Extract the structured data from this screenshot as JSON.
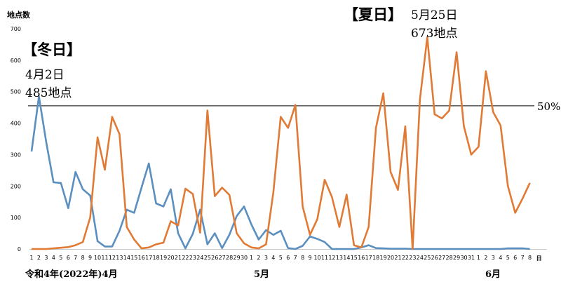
{
  "chart_data": {
    "type": "line",
    "title": "",
    "ylabel": "地点数",
    "xlabel": "",
    "ylim": [
      0,
      700
    ],
    "yticks": [
      0,
      100,
      200,
      300,
      400,
      500,
      600,
      700
    ],
    "grid": false,
    "x_tick_labels": [
      "1",
      "2",
      "3",
      "4",
      "5",
      "6",
      "7",
      "8",
      "9",
      "10",
      "11",
      "12",
      "13",
      "14",
      "15",
      "16",
      "17",
      "18",
      "19",
      "20",
      "21",
      "22",
      "23",
      "24",
      "25",
      "26",
      "27",
      "28",
      "29",
      "30",
      "1",
      "2",
      "3",
      "4",
      "5",
      "6",
      "7",
      "8",
      "9",
      "10",
      "11",
      "12",
      "13",
      "14",
      "15",
      "16",
      "17",
      "18",
      "19",
      "20",
      "21",
      "22",
      "23",
      "24",
      "25",
      "26",
      "27",
      "28",
      "29",
      "30",
      "31",
      "1",
      "2",
      "3",
      "4",
      "5",
      "6",
      "7",
      "8"
    ],
    "x_unit": "日",
    "month_labels": [
      "令和4年(2022年)4月",
      "5月",
      "6月"
    ],
    "reference_line": {
      "value": 455,
      "label": "50%"
    },
    "series": [
      {
        "color": "#5b8fbf",
        "values": [
          310,
          485,
          340,
          212,
          210,
          130,
          245,
          190,
          170,
          25,
          8,
          8,
          58,
          125,
          115,
          195,
          272,
          145,
          135,
          190,
          50,
          2,
          48,
          125,
          15,
          50,
          3,
          45,
          105,
          135,
          78,
          30,
          60,
          45,
          58,
          3,
          0,
          10,
          40,
          32,
          22,
          0,
          0,
          0,
          0,
          5,
          12,
          3,
          2,
          1,
          1,
          1,
          0,
          0,
          0,
          0,
          0,
          0,
          0,
          0,
          0,
          0,
          0,
          0,
          0,
          2,
          2,
          2,
          0
        ]
      },
      {
        "color": "#e07a35",
        "values": [
          0,
          0,
          0,
          2,
          4,
          6,
          12,
          22,
          100,
          355,
          252,
          420,
          365,
          70,
          30,
          2,
          5,
          15,
          20,
          88,
          75,
          192,
          175,
          52,
          440,
          168,
          195,
          172,
          50,
          18,
          5,
          2,
          15,
          180,
          420,
          385,
          458,
          135,
          45,
          95,
          220,
          165,
          70,
          173,
          12,
          5,
          70,
          385,
          495,
          245,
          188,
          390,
          0,
          475,
          673,
          428,
          415,
          440,
          625,
          390,
          300,
          325,
          565,
          435,
          393,
          200,
          115,
          160,
          210
        ]
      }
    ]
  },
  "annotations": {
    "winter_title": "【冬日】",
    "winter_date": "4月2日",
    "winter_count": "485地点",
    "summer_title": "【夏日】",
    "summer_date": "5月25日",
    "summer_count": "673地点"
  }
}
